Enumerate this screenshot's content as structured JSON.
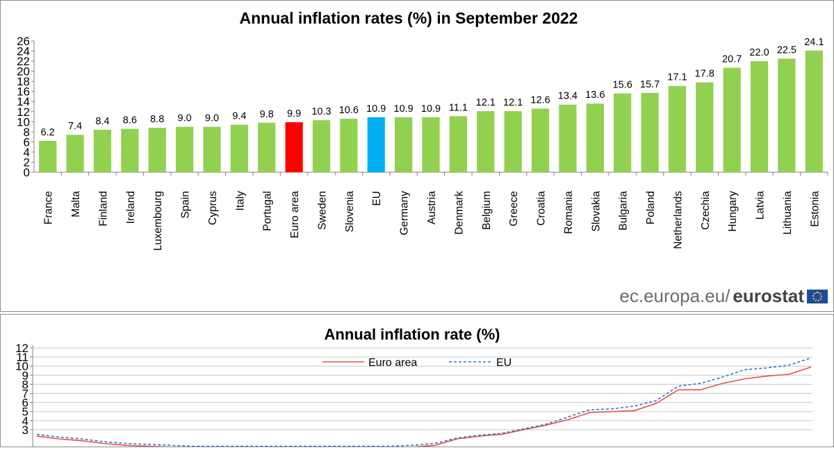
{
  "chart_data": [
    {
      "type": "bar",
      "title": "Annual inflation rates (%) in September 2022",
      "categories": [
        "France",
        "Malta",
        "Finland",
        "Ireland",
        "Luxembourg",
        "Spain",
        "Cyprus",
        "Italy",
        "Portugal",
        "Euro area",
        "Sweden",
        "Slovenia",
        "EU",
        "Germany",
        "Austria",
        "Denmark",
        "Belgium",
        "Greece",
        "Croatia",
        "Romania",
        "Slovakia",
        "Bulgaria",
        "Poland",
        "Netherlands",
        "Czechia",
        "Hungary",
        "Latvia",
        "Lithuania",
        "Estonia"
      ],
      "values": [
        6.2,
        7.4,
        8.4,
        8.6,
        8.8,
        9.0,
        9.0,
        9.4,
        9.8,
        9.9,
        10.3,
        10.6,
        10.9,
        10.9,
        10.9,
        11.1,
        12.1,
        12.1,
        12.6,
        13.4,
        13.6,
        15.6,
        15.7,
        17.1,
        17.8,
        20.7,
        22.0,
        22.5,
        24.1
      ],
      "value_labels": [
        "6.2",
        "7.4",
        "8.4",
        "8.6",
        "8.8",
        "9.0",
        "9.0",
        "9.4",
        "9.8",
        "9.9",
        "10.3",
        "10.6",
        "10.9",
        "10.9",
        "10.9",
        "11.1",
        "12.1",
        "12.1",
        "12.6",
        "13.4",
        "13.6",
        "15.6",
        "15.7",
        "17.1",
        "17.8",
        "20.7",
        "22.0",
        "22.5",
        "24.1"
      ],
      "ylim": [
        0,
        26
      ],
      "yticks": [
        "0",
        "2",
        "4",
        "6",
        "8",
        "10",
        "12",
        "14",
        "16",
        "18",
        "20",
        "22",
        "24",
        "26"
      ],
      "grid": false,
      "colors": {
        "default": "#92d050",
        "Euro area": "#ff0000",
        "EU": "#00b0f0"
      }
    },
    {
      "type": "line",
      "title": "Annual inflation rate (%)",
      "ylim": [
        0,
        12
      ],
      "yticks_visible": [
        "3",
        "4",
        "5",
        "6",
        "7",
        "8",
        "9",
        "10",
        "11",
        "12"
      ],
      "grid": true,
      "legend_position": "top-center",
      "series": [
        {
          "name": "Euro area",
          "color": "#e05050",
          "style": "solid",
          "values": [
            2.3,
            2.0,
            1.8,
            1.5,
            1.3,
            1.2,
            1.1,
            1.0,
            1.0,
            1.0,
            1.0,
            1.0,
            1.0,
            1.0,
            1.0,
            1.0,
            1.0,
            1.1,
            1.3,
            2.0,
            2.3,
            2.5,
            3.0,
            3.5,
            4.1,
            4.9,
            5.0,
            5.1,
            5.9,
            7.4,
            7.4,
            8.1,
            8.6,
            8.9,
            9.1,
            9.9
          ]
        },
        {
          "name": "EU",
          "color": "#2f74c4",
          "style": "dashed",
          "values": [
            2.5,
            2.2,
            2.0,
            1.7,
            1.5,
            1.4,
            1.3,
            1.2,
            1.2,
            1.2,
            1.2,
            1.2,
            1.2,
            1.2,
            1.2,
            1.2,
            1.2,
            1.3,
            1.5,
            2.1,
            2.4,
            2.6,
            3.1,
            3.6,
            4.4,
            5.2,
            5.3,
            5.6,
            6.2,
            7.8,
            8.1,
            8.8,
            9.6,
            9.8,
            10.1,
            10.9
          ]
        }
      ]
    }
  ],
  "footer": {
    "site": "ec.europa.eu/",
    "brand": "eurostat"
  },
  "icons": {
    "flag": "eu-flag-icon"
  }
}
